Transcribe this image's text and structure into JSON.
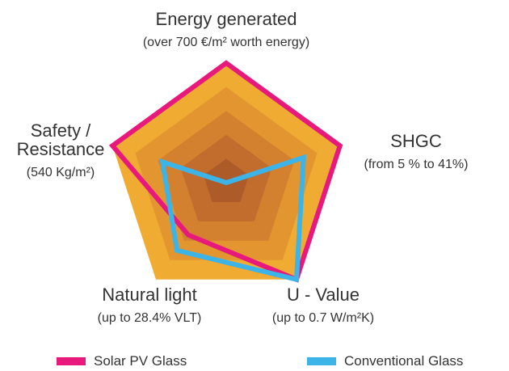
{
  "chart_data": {
    "type": "radar",
    "categories": [
      "Energy generated",
      "SHGC",
      "U - Value",
      "Natural light",
      "Safety / Resistance"
    ],
    "category_notes": [
      "(over 700 €/m² worth energy)",
      "(from 5 % to 41%)",
      "(up to 0.7 W/m²K)",
      "(up to 28.4% VLT)",
      "(540 Kg/m²)"
    ],
    "series": [
      {
        "name": "Solar PV Glass",
        "color": "#e8197d",
        "values": [
          5,
          5,
          5,
          2.7,
          5
        ]
      },
      {
        "name": "Conventional Glass",
        "color": "#3cb4e8",
        "values": [
          0,
          3.4,
          5,
          3.5,
          2.8
        ]
      }
    ],
    "rlim": [
      0,
      5
    ],
    "rticks": [
      1,
      2,
      3,
      4,
      5
    ],
    "ring_colors": [
      "#ad5b29",
      "#c26d2d",
      "#d4812f",
      "#e3962f",
      "#f0ab32"
    ]
  }
}
